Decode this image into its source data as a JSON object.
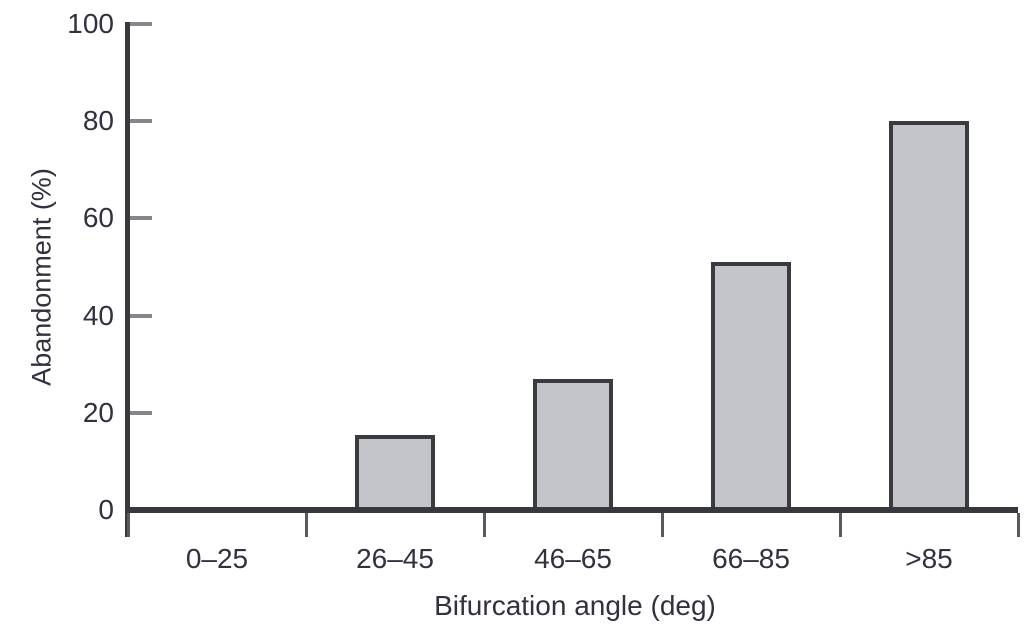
{
  "chart_data": {
    "type": "bar",
    "title": "",
    "categories": [
      "0–25",
      "26–45",
      "46–65",
      "66–85",
      ">85"
    ],
    "values": [
      0,
      15.5,
      27,
      51,
      80
    ],
    "xlabel": "Bifurcation angle (deg)",
    "ylabel": "Abandonment (%)",
    "ylim": [
      0,
      100
    ],
    "yticks": [
      0,
      20,
      40,
      60,
      80,
      100
    ],
    "grid": false,
    "legend": false,
    "colors": {
      "bar_fill": "#c4c5c8",
      "bar_border": "#3a3b40",
      "axis": "#37383d",
      "ytick_mark": "#85868a",
      "xtick_mark": "#595a60",
      "text": "#31313f"
    }
  }
}
